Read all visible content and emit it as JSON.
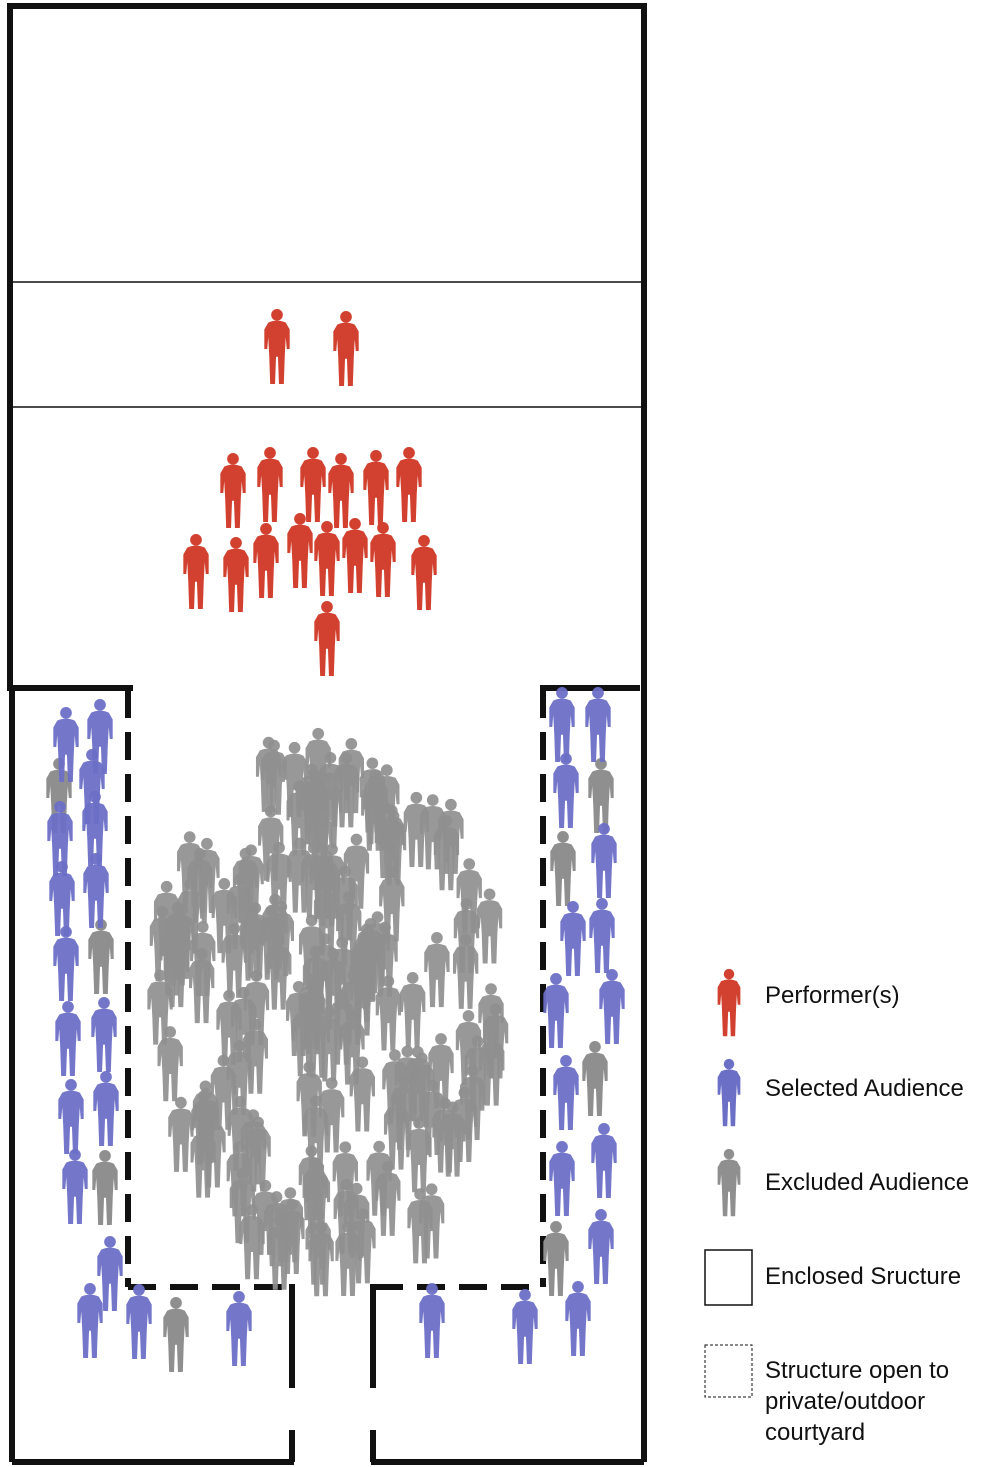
{
  "legend": [
    {
      "label": "Performer(s)"
    },
    {
      "label": "Selected Audience"
    },
    {
      "label": "Excluded Audience"
    },
    {
      "label": "Enclosed Sructure"
    },
    {
      "label": "Structure open to private/outdoor courtyard"
    }
  ]
}
